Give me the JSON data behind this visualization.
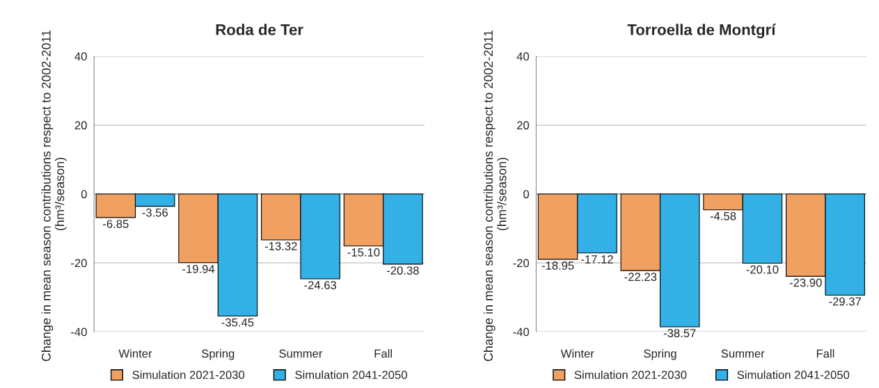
{
  "chart_data": [
    {
      "type": "bar",
      "title": "Roda de Ter",
      "ylabel": "Change in mean season contributions respect to 2002-2011  (hm³/season)",
      "categories": [
        "Winter",
        "Spring",
        "Summer",
        "Fall"
      ],
      "series": [
        {
          "name": "Simulation 2021-2030",
          "color": "#f0a060",
          "values": [
            -6.85,
            -19.94,
            -13.32,
            -15.1
          ],
          "value_labels": [
            "-6.85",
            "-19.94",
            "-13.32",
            "-15.10"
          ]
        },
        {
          "name": "Simulation 2041-2050",
          "color": "#33b0e6",
          "values": [
            -3.56,
            -35.45,
            -24.63,
            -20.38
          ],
          "value_labels": [
            "-3.56",
            "-35.45",
            "-24.63",
            "-20.38"
          ]
        }
      ],
      "ylim": [
        -40,
        40
      ],
      "yticks": [
        -40,
        -20,
        0,
        20,
        40
      ],
      "grid": "y",
      "legend": "bottom"
    },
    {
      "type": "bar",
      "title": "Torroella de Montgrí",
      "ylabel": "Change in mean season contributions respect to 2002-2011  (hm³/season)",
      "categories": [
        "Winter",
        "Spring",
        "Summer",
        "Fall"
      ],
      "series": [
        {
          "name": "Simulation 2021-2030",
          "color": "#f0a060",
          "values": [
            -18.95,
            -22.23,
            -4.58,
            -23.9
          ],
          "value_labels": [
            "-18.95",
            "-22.23",
            "-4.58",
            "-23.90"
          ]
        },
        {
          "name": "Simulation 2041-2050",
          "color": "#33b0e6",
          "values": [
            -17.12,
            -38.57,
            -20.1,
            -29.37
          ],
          "value_labels": [
            "-17.12",
            "-38.57",
            "-20.10",
            "-29.37"
          ]
        }
      ],
      "ylim": [
        -40,
        40
      ],
      "yticks": [
        -40,
        -20,
        0,
        20,
        40
      ],
      "grid": "y",
      "legend": "bottom"
    }
  ]
}
